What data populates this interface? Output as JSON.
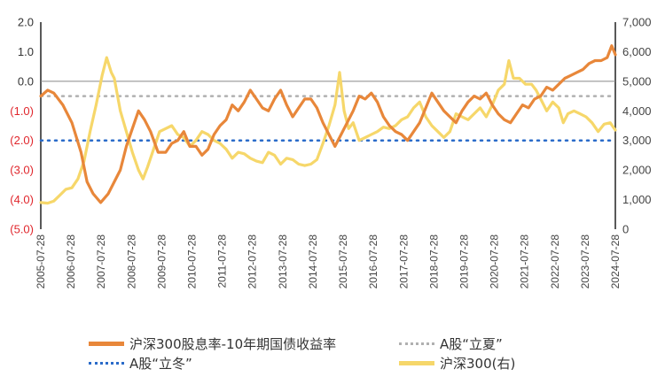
{
  "chart_data": {
    "type": "line",
    "title": "",
    "x_ticks": [
      "2005-07-28",
      "2006-07-28",
      "2007-07-28",
      "2008-07-28",
      "2009-07-28",
      "2010-07-28",
      "2011-07-28",
      "2012-07-28",
      "2013-07-28",
      "2014-07-28",
      "2015-07-28",
      "2016-07-28",
      "2017-07-28",
      "2018-07-28",
      "2019-07-28",
      "2020-07-28",
      "2021-07-28",
      "2022-07-28",
      "2023-07-28",
      "2024-07-28"
    ],
    "x_range": [
      2005.57,
      2024.57
    ],
    "left_axis": {
      "ticks": [
        2.0,
        1.0,
        0.0,
        -1.0,
        -2.0,
        -3.0,
        -4.0,
        -5.0
      ],
      "tick_labels": [
        "2.0",
        "1.0",
        "0.0",
        "(1.0)",
        "(2.0)",
        "(3.0)",
        "(4.0)",
        "(5.0)"
      ],
      "negative_color": "#e0262c",
      "ylim": [
        -5.0,
        2.0
      ]
    },
    "right_axis": {
      "ticks": [
        7000,
        6000,
        5000,
        4000,
        3000,
        2000,
        1000,
        0
      ],
      "tick_labels": [
        "7,000",
        "6,000",
        "5,000",
        "4,000",
        "3,000",
        "2,000",
        "1,000",
        "0"
      ],
      "ylim": [
        0,
        7000
      ]
    },
    "series": [
      {
        "name": "沪深300股息率-10年期国债收益率",
        "axis": "left",
        "color": "#e8873a",
        "style": "solid",
        "points": [
          [
            2005.57,
            -0.5
          ],
          [
            2005.8,
            -0.3
          ],
          [
            2006.0,
            -0.4
          ],
          [
            2006.3,
            -0.8
          ],
          [
            2006.6,
            -1.4
          ],
          [
            2006.9,
            -2.4
          ],
          [
            2007.1,
            -3.4
          ],
          [
            2007.3,
            -3.8
          ],
          [
            2007.55,
            -4.1
          ],
          [
            2007.8,
            -3.8
          ],
          [
            2008.0,
            -3.4
          ],
          [
            2008.2,
            -3.0
          ],
          [
            2008.4,
            -2.2
          ],
          [
            2008.6,
            -1.6
          ],
          [
            2008.8,
            -1.0
          ],
          [
            2009.0,
            -1.3
          ],
          [
            2009.2,
            -1.7
          ],
          [
            2009.45,
            -2.4
          ],
          [
            2009.7,
            -2.4
          ],
          [
            2009.9,
            -2.1
          ],
          [
            2010.1,
            -2.0
          ],
          [
            2010.3,
            -1.7
          ],
          [
            2010.5,
            -2.2
          ],
          [
            2010.7,
            -2.2
          ],
          [
            2010.9,
            -2.5
          ],
          [
            2011.1,
            -2.3
          ],
          [
            2011.3,
            -1.8
          ],
          [
            2011.5,
            -1.5
          ],
          [
            2011.7,
            -1.3
          ],
          [
            2011.9,
            -0.8
          ],
          [
            2012.1,
            -1.0
          ],
          [
            2012.3,
            -0.7
          ],
          [
            2012.5,
            -0.3
          ],
          [
            2012.7,
            -0.6
          ],
          [
            2012.9,
            -0.9
          ],
          [
            2013.1,
            -1.0
          ],
          [
            2013.3,
            -0.6
          ],
          [
            2013.5,
            -0.3
          ],
          [
            2013.7,
            -0.8
          ],
          [
            2013.9,
            -1.2
          ],
          [
            2014.1,
            -0.9
          ],
          [
            2014.3,
            -0.6
          ],
          [
            2014.5,
            -0.6
          ],
          [
            2014.7,
            -0.9
          ],
          [
            2014.9,
            -1.4
          ],
          [
            2015.1,
            -1.8
          ],
          [
            2015.3,
            -2.2
          ],
          [
            2015.5,
            -1.8
          ],
          [
            2015.7,
            -1.4
          ],
          [
            2015.9,
            -1.0
          ],
          [
            2016.1,
            -0.5
          ],
          [
            2016.3,
            -0.6
          ],
          [
            2016.5,
            -0.4
          ],
          [
            2016.7,
            -0.7
          ],
          [
            2016.9,
            -1.2
          ],
          [
            2017.1,
            -1.5
          ],
          [
            2017.3,
            -1.7
          ],
          [
            2017.5,
            -1.8
          ],
          [
            2017.7,
            -2.0
          ],
          [
            2017.9,
            -1.7
          ],
          [
            2018.1,
            -1.4
          ],
          [
            2018.3,
            -0.9
          ],
          [
            2018.5,
            -0.4
          ],
          [
            2018.7,
            -0.7
          ],
          [
            2018.9,
            -1.0
          ],
          [
            2019.1,
            -1.2
          ],
          [
            2019.3,
            -1.4
          ],
          [
            2019.5,
            -1.0
          ],
          [
            2019.7,
            -0.7
          ],
          [
            2019.9,
            -0.5
          ],
          [
            2020.1,
            -0.6
          ],
          [
            2020.3,
            -0.4
          ],
          [
            2020.5,
            -0.8
          ],
          [
            2020.7,
            -1.1
          ],
          [
            2020.9,
            -1.3
          ],
          [
            2021.1,
            -1.4
          ],
          [
            2021.3,
            -1.1
          ],
          [
            2021.5,
            -0.8
          ],
          [
            2021.7,
            -0.9
          ],
          [
            2021.9,
            -0.6
          ],
          [
            2022.1,
            -0.5
          ],
          [
            2022.3,
            -0.2
          ],
          [
            2022.5,
            -0.3
          ],
          [
            2022.7,
            -0.1
          ],
          [
            2022.9,
            0.1
          ],
          [
            2023.1,
            0.2
          ],
          [
            2023.3,
            0.3
          ],
          [
            2023.5,
            0.4
          ],
          [
            2023.7,
            0.6
          ],
          [
            2023.9,
            0.7
          ],
          [
            2024.1,
            0.7
          ],
          [
            2024.3,
            0.8
          ],
          [
            2024.45,
            1.2
          ],
          [
            2024.57,
            0.9
          ]
        ]
      },
      {
        "name": "A股“立夏”",
        "axis": "left",
        "color": "#b0b0b0",
        "style": "dotted",
        "constant": -0.5
      },
      {
        "name": "A股“立冬”",
        "axis": "left",
        "color": "#2a6bc9",
        "style": "dotted",
        "constant": -2.0
      },
      {
        "name": "沪深300(右)",
        "axis": "right",
        "color": "#f6d76a",
        "style": "solid",
        "points": [
          [
            2005.57,
            900
          ],
          [
            2005.8,
            880
          ],
          [
            2006.0,
            950
          ],
          [
            2006.2,
            1150
          ],
          [
            2006.4,
            1350
          ],
          [
            2006.6,
            1400
          ],
          [
            2006.8,
            1700
          ],
          [
            2007.0,
            2300
          ],
          [
            2007.2,
            3300
          ],
          [
            2007.4,
            4200
          ],
          [
            2007.6,
            5200
          ],
          [
            2007.75,
            5800
          ],
          [
            2007.9,
            5300
          ],
          [
            2008.0,
            5100
          ],
          [
            2008.2,
            4000
          ],
          [
            2008.4,
            3300
          ],
          [
            2008.6,
            2600
          ],
          [
            2008.8,
            2000
          ],
          [
            2008.95,
            1700
          ],
          [
            2009.1,
            2100
          ],
          [
            2009.3,
            2700
          ],
          [
            2009.5,
            3300
          ],
          [
            2009.7,
            3400
          ],
          [
            2009.9,
            3500
          ],
          [
            2010.1,
            3200
          ],
          [
            2010.3,
            3100
          ],
          [
            2010.5,
            2800
          ],
          [
            2010.7,
            3000
          ],
          [
            2010.9,
            3300
          ],
          [
            2011.1,
            3200
          ],
          [
            2011.3,
            3000
          ],
          [
            2011.5,
            2900
          ],
          [
            2011.7,
            2700
          ],
          [
            2011.9,
            2400
          ],
          [
            2012.1,
            2600
          ],
          [
            2012.3,
            2550
          ],
          [
            2012.5,
            2400
          ],
          [
            2012.7,
            2300
          ],
          [
            2012.9,
            2250
          ],
          [
            2013.1,
            2600
          ],
          [
            2013.3,
            2500
          ],
          [
            2013.5,
            2200
          ],
          [
            2013.7,
            2400
          ],
          [
            2013.9,
            2350
          ],
          [
            2014.1,
            2200
          ],
          [
            2014.3,
            2150
          ],
          [
            2014.5,
            2200
          ],
          [
            2014.7,
            2350
          ],
          [
            2014.9,
            2900
          ],
          [
            2015.1,
            3500
          ],
          [
            2015.3,
            4200
          ],
          [
            2015.45,
            5300
          ],
          [
            2015.6,
            4000
          ],
          [
            2015.75,
            3400
          ],
          [
            2015.9,
            3600
          ],
          [
            2016.1,
            3000
          ],
          [
            2016.3,
            3100
          ],
          [
            2016.5,
            3200
          ],
          [
            2016.7,
            3300
          ],
          [
            2016.9,
            3450
          ],
          [
            2017.1,
            3400
          ],
          [
            2017.3,
            3500
          ],
          [
            2017.5,
            3700
          ],
          [
            2017.7,
            3800
          ],
          [
            2017.9,
            4100
          ],
          [
            2018.1,
            4300
          ],
          [
            2018.3,
            3800
          ],
          [
            2018.5,
            3500
          ],
          [
            2018.7,
            3300
          ],
          [
            2018.9,
            3100
          ],
          [
            2019.1,
            3300
          ],
          [
            2019.3,
            3900
          ],
          [
            2019.5,
            3800
          ],
          [
            2019.7,
            3700
          ],
          [
            2019.9,
            3900
          ],
          [
            2020.1,
            4100
          ],
          [
            2020.3,
            3800
          ],
          [
            2020.5,
            4200
          ],
          [
            2020.7,
            4700
          ],
          [
            2020.9,
            4900
          ],
          [
            2021.05,
            5700
          ],
          [
            2021.2,
            5100
          ],
          [
            2021.4,
            5100
          ],
          [
            2021.6,
            4900
          ],
          [
            2021.8,
            4900
          ],
          [
            2021.95,
            4700
          ],
          [
            2022.1,
            4400
          ],
          [
            2022.3,
            4000
          ],
          [
            2022.5,
            4300
          ],
          [
            2022.7,
            4100
          ],
          [
            2022.85,
            3600
          ],
          [
            2023.0,
            3900
          ],
          [
            2023.2,
            4000
          ],
          [
            2023.4,
            3900
          ],
          [
            2023.6,
            3800
          ],
          [
            2023.8,
            3600
          ],
          [
            2024.0,
            3300
          ],
          [
            2024.2,
            3550
          ],
          [
            2024.4,
            3600
          ],
          [
            2024.57,
            3350
          ]
        ]
      }
    ],
    "legend": {
      "placement": "bottom",
      "items": [
        "沪深300股息率-10年期国债收益率",
        "A股“立夏”",
        "A股“立冬”",
        "沪深300(右)"
      ]
    },
    "grid": false
  }
}
